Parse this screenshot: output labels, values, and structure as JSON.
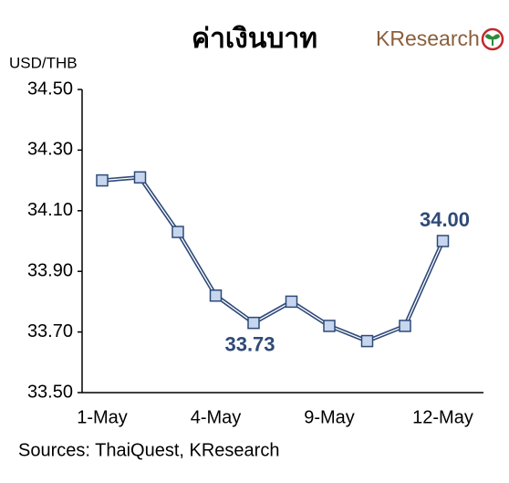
{
  "chart_data": {
    "type": "line",
    "title": "ค่าเงินบาท",
    "logo": "KResearch",
    "y_label": "USD/THB",
    "source": "Sources: ThaiQuest, KResearch",
    "categories": [
      "1-May",
      null,
      null,
      "4-May",
      null,
      null,
      "9-May",
      null,
      null,
      "12-May"
    ],
    "series": [
      {
        "name": "USD/THB",
        "color": "#2f4a78",
        "marker_color": "#c6d6ee",
        "values": [
          34.2,
          34.21,
          34.03,
          33.82,
          33.73,
          33.8,
          33.72,
          33.67,
          33.72,
          34.0
        ],
        "value_labels": [
          null,
          null,
          null,
          null,
          "33.73",
          null,
          null,
          null,
          null,
          "34.00"
        ]
      }
    ],
    "ylim": [
      33.5,
      34.5
    ],
    "yticks": [
      {
        "value": 33.5,
        "label": "33.50"
      },
      {
        "value": 33.7,
        "label": "33.70"
      },
      {
        "value": 33.9,
        "label": "33.90"
      },
      {
        "value": 34.1,
        "label": "34.10"
      },
      {
        "value": 34.3,
        "label": "34.30"
      },
      {
        "value": 34.5,
        "label": "34.50"
      }
    ],
    "grid": false
  }
}
